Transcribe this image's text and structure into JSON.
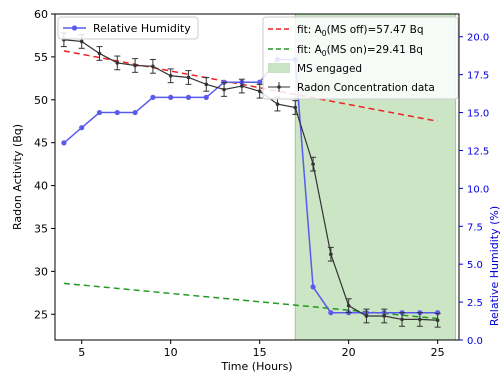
{
  "chart_data": {
    "type": "line",
    "xlabel": "Time (Hours)",
    "ylabel_left": "Radon Activity (Bq)",
    "ylabel_right": "Relative Humidity (%)",
    "xlim": [
      3.5,
      26.2
    ],
    "ylim_left": [
      22,
      60
    ],
    "ylim_right": [
      0,
      21.5
    ],
    "x_ticks": [
      5,
      10,
      15,
      20,
      25
    ],
    "y_left_ticks": [
      25,
      30,
      35,
      40,
      45,
      50,
      55,
      60
    ],
    "y_right_ticks": [
      "0.0",
      "2.5",
      "5.0",
      "7.5",
      "10.0",
      "12.5",
      "15.0",
      "17.5",
      "20.0"
    ],
    "right_axis_color": "#0000dd",
    "grid": false,
    "shaded_region": {
      "name": "MS engaged",
      "x_start": 17,
      "x_end": 26,
      "color": "#c8e4c2"
    },
    "series": [
      {
        "name": "Relative Humidity",
        "axis": "right",
        "color": "#5a5aee",
        "marker": "circle",
        "x": [
          4,
          5,
          6,
          7,
          8,
          9,
          10,
          11,
          12,
          13,
          14,
          15,
          16,
          17,
          18,
          19,
          20,
          21,
          22,
          23,
          24,
          25
        ],
        "values": [
          13.0,
          14.0,
          15.0,
          15.0,
          15.0,
          16.0,
          16.0,
          16.0,
          16.0,
          17.0,
          17.0,
          17.0,
          18.5,
          18.5,
          3.5,
          1.8,
          1.8,
          1.8,
          1.8,
          1.8,
          1.8,
          1.8
        ]
      },
      {
        "name": "Radon Concentration data",
        "axis": "left",
        "color": "#333333",
        "marker": "point",
        "x": [
          4,
          5,
          6,
          7,
          8,
          9,
          10,
          11,
          12,
          13,
          14,
          15,
          16,
          17,
          18,
          19,
          20,
          21,
          22,
          23,
          24,
          25
        ],
        "values": [
          57.0,
          56.8,
          55.4,
          54.3,
          54.0,
          53.9,
          52.8,
          52.6,
          51.8,
          51.2,
          51.6,
          51.0,
          49.5,
          49.1,
          42.5,
          32.0,
          26.0,
          24.8,
          24.8,
          24.4,
          24.4,
          24.3
        ],
        "errors": [
          0.8,
          0.8,
          0.8,
          0.8,
          0.8,
          0.8,
          0.8,
          0.8,
          0.8,
          0.8,
          0.8,
          0.8,
          0.8,
          0.8,
          0.8,
          0.8,
          0.8,
          0.8,
          0.8,
          0.8,
          0.8,
          0.8
        ]
      }
    ],
    "fits": [
      {
        "label_prefix": "fit: A",
        "label_sub": "0",
        "label_suffix": "(MS off)=57.47 Bq",
        "color": "#ee2222",
        "x": [
          4,
          25
        ],
        "values": [
          55.7,
          47.5
        ]
      },
      {
        "label_prefix": "fit: A",
        "label_sub": "0",
        "label_suffix": "(MS on)=29.41 Bq",
        "color": "#229922",
        "x": [
          4,
          25
        ],
        "values": [
          28.6,
          24.5
        ]
      }
    ],
    "legend_left": {
      "position": "top-left"
    },
    "legend_right": {
      "position": "top-right"
    }
  }
}
